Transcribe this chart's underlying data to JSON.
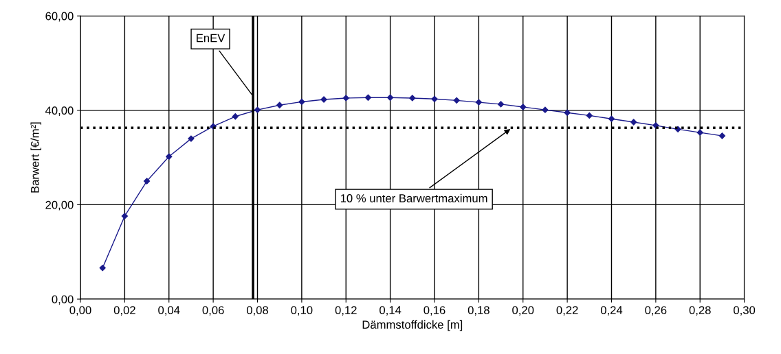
{
  "chart_data": {
    "type": "line",
    "xlabel": "Dämmstoffdicke [m]",
    "ylabel": "Barwert [€/m²]",
    "x": [
      0.01,
      0.02,
      0.03,
      0.04,
      0.05,
      0.06,
      0.07,
      0.08,
      0.09,
      0.1,
      0.11,
      0.12,
      0.13,
      0.14,
      0.15,
      0.16,
      0.17,
      0.18,
      0.19,
      0.2,
      0.21,
      0.22,
      0.23,
      0.24,
      0.25,
      0.26,
      0.27,
      0.28,
      0.29
    ],
    "series": [
      {
        "color": "#1a1a8c",
        "values": [
          6.6,
          17.6,
          25.0,
          30.2,
          34.0,
          36.6,
          38.7,
          40.1,
          41.1,
          41.8,
          42.3,
          42.6,
          42.7,
          42.7,
          42.6,
          42.4,
          42.1,
          41.7,
          41.3,
          40.7,
          40.1,
          39.5,
          38.9,
          38.2,
          37.5,
          36.8,
          36.0,
          35.3,
          34.6
        ]
      }
    ],
    "xlim": [
      0,
      0.3
    ],
    "xticks": [
      {
        "value": 0,
        "label": "0,00"
      },
      {
        "value": 0.02,
        "label": "0,02"
      },
      {
        "value": 0.04,
        "label": "0,04"
      },
      {
        "value": 0.06,
        "label": "0,06"
      },
      {
        "value": 0.08,
        "label": "0,08"
      },
      {
        "value": 0.1,
        "label": "0,10"
      },
      {
        "value": 0.12,
        "label": "0,12"
      },
      {
        "value": 0.14,
        "label": "0,14"
      },
      {
        "value": 0.16,
        "label": "0,16"
      },
      {
        "value": 0.18,
        "label": "0,18"
      },
      {
        "value": 0.2,
        "label": "0,20"
      },
      {
        "value": 0.22,
        "label": "0,22"
      },
      {
        "value": 0.24,
        "label": "0,24"
      },
      {
        "value": 0.26,
        "label": "0,26"
      },
      {
        "value": 0.28,
        "label": "0,28"
      },
      {
        "value": 0.3,
        "label": "0,30"
      }
    ],
    "ylim": [
      0,
      60
    ],
    "yticks": [
      {
        "value": 0,
        "label": "0,00"
      },
      {
        "value": 20,
        "label": "20,00"
      },
      {
        "value": 40,
        "label": "40,00"
      },
      {
        "value": 60,
        "label": "60,00"
      }
    ],
    "grid": true,
    "marker": "diamond",
    "line_style": "solid",
    "ref_lines": [
      {
        "axis": "x",
        "value": 0.078,
        "color": "#000000",
        "line_style": "solid"
      },
      {
        "axis": "y",
        "value": 36.3,
        "color": "#000000",
        "line_style": "dotted"
      }
    ],
    "annotations": [
      {
        "text": "EnEV",
        "x": 0.078,
        "y": 43
      },
      {
        "text": "10 % unter Barwertmaximum",
        "x": 0.195,
        "y": 36.3
      }
    ]
  }
}
